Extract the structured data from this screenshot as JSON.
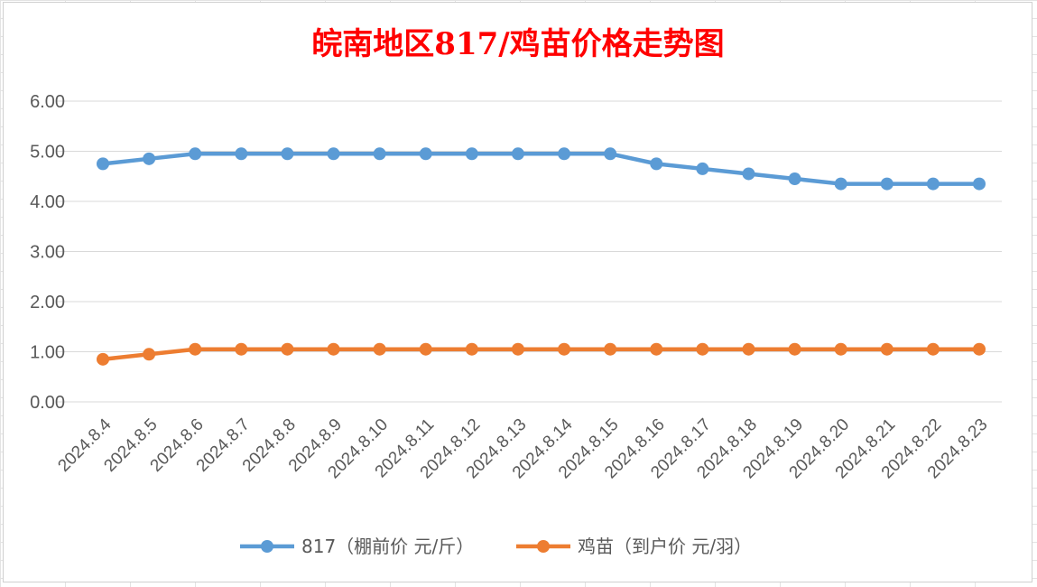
{
  "chart_data": {
    "type": "line",
    "title": "皖南地区817/鸡苗价格走势图",
    "categories": [
      "2024.8.4",
      "2024.8.5",
      "2024.8.6",
      "2024.8.7",
      "2024.8.8",
      "2024.8.9",
      "2024.8.10",
      "2024.8.11",
      "2024.8.12",
      "2024.8.13",
      "2024.8.14",
      "2024.8.15",
      "2024.8.16",
      "2024.8.17",
      "2024.8.18",
      "2024.8.19",
      "2024.8.20",
      "2024.8.21",
      "2024.8.22",
      "2024.8.23"
    ],
    "series": [
      {
        "name": "817（棚前价 元/斤）",
        "color": "#5b9bd5",
        "values": [
          4.75,
          4.85,
          4.95,
          4.95,
          4.95,
          4.95,
          4.95,
          4.95,
          4.95,
          4.95,
          4.95,
          4.95,
          4.75,
          4.65,
          4.55,
          4.45,
          4.35,
          4.35,
          4.35,
          4.35
        ]
      },
      {
        "name": "鸡苗（到户价 元/羽）",
        "color": "#ed7d31",
        "values": [
          0.85,
          0.95,
          1.05,
          1.05,
          1.05,
          1.05,
          1.05,
          1.05,
          1.05,
          1.05,
          1.05,
          1.05,
          1.05,
          1.05,
          1.05,
          1.05,
          1.05,
          1.05,
          1.05,
          1.05
        ]
      }
    ],
    "yticks": [
      "0.00",
      "1.00",
      "2.00",
      "3.00",
      "4.00",
      "5.00",
      "6.00"
    ],
    "ylim": [
      0,
      6
    ],
    "grid": true,
    "legend": "bottom"
  }
}
